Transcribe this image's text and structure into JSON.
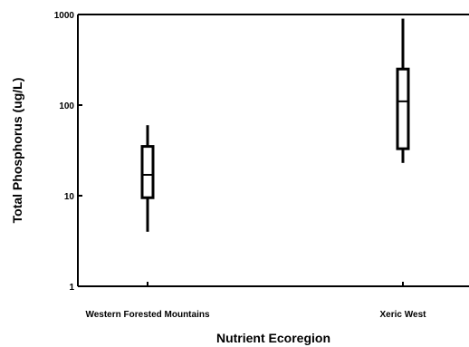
{
  "chart_data": {
    "type": "boxplot",
    "xlabel": "Nutrient Ecoregion",
    "ylabel": "Total Phosphorus (ug/L)",
    "yscale": "log",
    "ylim": [
      1,
      1000
    ],
    "yticks": [
      {
        "value": 1,
        "label": "1"
      },
      {
        "value": 10,
        "label": "10"
      },
      {
        "value": 100,
        "label": "100"
      },
      {
        "value": 1000,
        "label": "1000"
      }
    ],
    "categories": [
      "Western Forested Mountains",
      "Xeric West"
    ],
    "boxes": [
      {
        "category": "Western Forested Mountains",
        "whisker_low": 4,
        "q1": 9.5,
        "median": 17,
        "q3": 35,
        "whisker_high": 60
      },
      {
        "category": "Xeric West",
        "whisker_low": 23,
        "q1": 33,
        "median": 110,
        "q3": 250,
        "whisker_high": 900
      }
    ],
    "grid": false,
    "legend": "none"
  }
}
